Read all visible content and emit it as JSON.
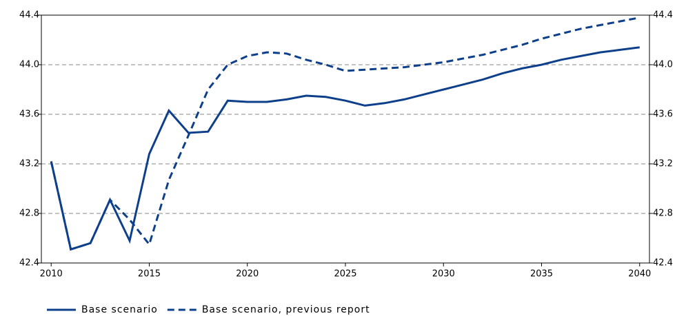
{
  "chart_data": {
    "type": "line",
    "x": [
      2010,
      2011,
      2012,
      2013,
      2014,
      2015,
      2016,
      2017,
      2018,
      2019,
      2020,
      2021,
      2022,
      2023,
      2024,
      2025,
      2026,
      2027,
      2028,
      2029,
      2030,
      2031,
      2032,
      2033,
      2034,
      2035,
      2036,
      2037,
      2038,
      2039,
      2040
    ],
    "series": [
      {
        "name": "Base scenario",
        "color": "#0d3f8a",
        "dash": false,
        "values": [
          43.22,
          42.51,
          42.56,
          42.91,
          42.58,
          43.28,
          43.63,
          43.45,
          43.46,
          43.71,
          43.7,
          43.7,
          43.72,
          43.75,
          43.74,
          43.71,
          43.67,
          43.69,
          43.72,
          43.76,
          43.8,
          43.84,
          43.88,
          43.93,
          43.97,
          44.0,
          44.04,
          44.07,
          44.1,
          44.12,
          44.14
        ]
      },
      {
        "name": "Base scenario, previous report",
        "color": "#0d3f8a",
        "dash": true,
        "values": [
          43.22,
          42.51,
          42.56,
          42.91,
          42.75,
          42.55,
          43.07,
          43.43,
          43.8,
          44.0,
          44.07,
          44.1,
          44.09,
          44.04,
          44.0,
          43.95,
          43.96,
          43.97,
          43.98,
          44.0,
          44.02,
          44.05,
          44.08,
          44.12,
          44.16,
          44.21,
          44.25,
          44.29,
          44.32,
          44.35,
          44.38
        ]
      }
    ],
    "xlim": [
      2009.5,
      2040.5
    ],
    "xticks": [
      2010,
      2015,
      2020,
      2025,
      2030,
      2035,
      2040
    ],
    "ylim": [
      42.4,
      44.4
    ],
    "yticks": [
      42.4,
      42.8,
      43.2,
      43.6,
      {
        "value": 44,
        "label": "44.0"
      },
      44.4
    ],
    "y2lim": [
      42.4,
      44.4
    ],
    "y2ticks": [
      42.4,
      42.8,
      43.2,
      43.6,
      {
        "value": 44,
        "label": "44.0"
      },
      44.4
    ],
    "grid": true,
    "legend": "bottom"
  }
}
